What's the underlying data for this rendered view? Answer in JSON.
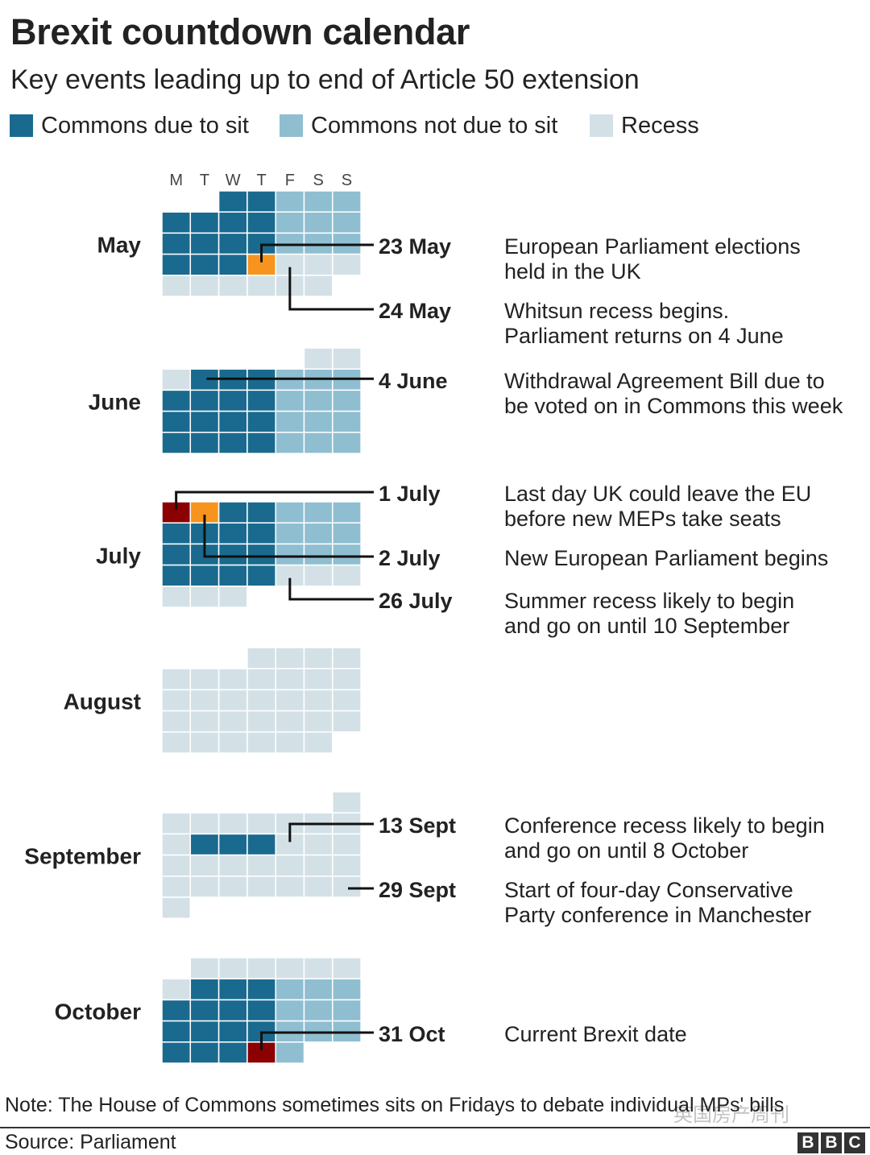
{
  "title": "Brexit countdown calendar",
  "subtitle": "Key events leading up to end of Article 50 extension",
  "legend": [
    {
      "label": "Commons due to sit",
      "color": "#1a6a8f"
    },
    {
      "label": "Commons not due to sit",
      "color": "#8fbed1"
    },
    {
      "label": "Recess",
      "color": "#d3e1e7"
    }
  ],
  "colors": {
    "sit": "#1a6a8f",
    "not_sit": "#8fbed1",
    "recess": "#d3e1e7",
    "highlight_orange": "#f7941d",
    "highlight_red": "#8b0000"
  },
  "chart_data": {
    "type": "calendar",
    "weekday_labels": [
      "M",
      "T",
      "W",
      "T",
      "F",
      "S",
      "S"
    ],
    "months": [
      {
        "name": "May",
        "start_weekday": 2,
        "days": "sssssssssssssssssssssssrrrrrrrrr",
        "special": {
          "23": "orange"
        },
        "events": [
          {
            "date": "23 May",
            "day": 23,
            "text": "European Parliament elections held in the UK",
            "lines": [
              "European Parliament elections",
              "held in the UK"
            ]
          },
          {
            "date": "24 May",
            "day": 24,
            "text": "Whitsun recess begins. Parliament returns on 4 June",
            "lines": [
              "Whitsun recess begins.",
              "Parliament returns on 4 June"
            ]
          }
        ]
      },
      {
        "name": "June",
        "start_weekday": 5,
        "days": "rrrsssssssssssssssssssssssssss",
        "special": {},
        "events": [
          {
            "date": "4 June",
            "day": 4,
            "text": "Withdrawal Agreement Bill due to be voted on in Commons this week",
            "lines": [
              "Withdrawal Agreement Bill due to",
              "be voted on in Commons this week"
            ]
          }
        ]
      },
      {
        "name": "July",
        "start_weekday": 0,
        "days": "sssssssssssssssssssssssssrrrrrr",
        "special": {
          "1": "red",
          "2": "orange"
        },
        "events": [
          {
            "date": "1 July",
            "day": 1,
            "text": "Last day UK could leave the EU before new MEPs take seats",
            "lines": [
              "Last day UK could leave the EU",
              "before new MEPs take seats"
            ]
          },
          {
            "date": "2 July",
            "day": 2,
            "text": "New European Parliament begins",
            "lines": [
              "New European Parliament begins"
            ]
          },
          {
            "date": "26 July",
            "day": 26,
            "text": "Summer recess likely to begin and go on until 10 September",
            "lines": [
              "Summer recess likely to begin",
              "and go on until 10 September"
            ]
          }
        ]
      },
      {
        "name": "August",
        "start_weekday": 3,
        "days": "rrrrrrrrrrrrrrrrrrrrrrrrrrrrrrr",
        "special": {},
        "events": []
      },
      {
        "name": "September",
        "start_weekday": 6,
        "days": "rrrrrrrrrsssrrrrrrrrrrrrrrrrrr",
        "special": {},
        "events": [
          {
            "date": "13 Sept",
            "day": 13,
            "text": "Conference recess likely to begin and go on until 8 October",
            "lines": [
              "Conference recess likely to begin",
              "and go on until 8 October"
            ]
          },
          {
            "date": "29 Sept",
            "day": 29,
            "text": "Start of four-day Conservative Party conference in Manchester",
            "lines": [
              "Start of four-day Conservative",
              "Party conference in Manchester"
            ]
          }
        ]
      },
      {
        "name": "October",
        "start_weekday": 1,
        "days": "rrrrrrrsssssssssssssssssssssssss",
        "special": {
          "31": "red"
        },
        "events": [
          {
            "date": "31 Oct",
            "day": 31,
            "text": "Current Brexit date",
            "lines": [
              "Current Brexit date"
            ]
          }
        ]
      }
    ]
  },
  "note": "Note: The House of Commons sometimes sits on Fridays to debate individual MPs' bills",
  "source": "Source: Parliament",
  "logo": [
    "B",
    "B",
    "C"
  ],
  "watermark": "英国房产周刊"
}
